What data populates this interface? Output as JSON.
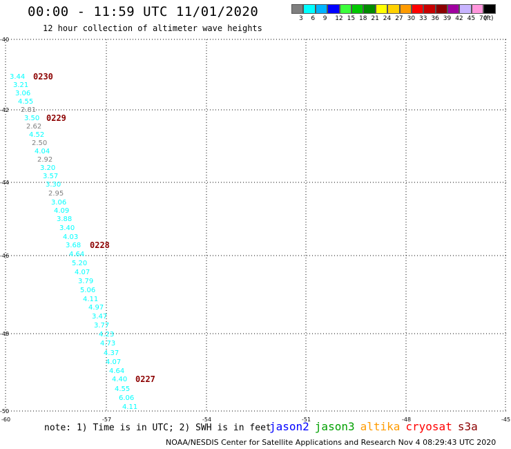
{
  "header": {
    "title": "00:00 - 11:59 UTC 11/01/2020",
    "subtitle": "12 hour collection of altimeter wave heights"
  },
  "colorbar": {
    "colors": [
      "#7f7f7f",
      "#00ffff",
      "#00b4ff",
      "#0000ff",
      "#3cff3c",
      "#00c800",
      "#008c00",
      "#ffff00",
      "#ffd200",
      "#ff9b00",
      "#ff0000",
      "#c80000",
      "#8c0000",
      "#a000a0",
      "#c8b4ff",
      "#ff96dc",
      "#000000"
    ],
    "labels": [
      "3",
      "6",
      "9",
      "12",
      "15",
      "18",
      "21",
      "24",
      "27",
      "30",
      "33",
      "36",
      "39",
      "42",
      "45",
      "70",
      "(ft)"
    ]
  },
  "map": {
    "lon_ticks": [
      "-60",
      "-57",
      "-54",
      "-51",
      "-48",
      "-45"
    ],
    "lat_ticks": [
      "-40",
      "-42",
      "-44",
      "-46",
      "-48",
      "-50"
    ],
    "observations": [
      {
        "value": "3.44",
        "color": "#00ffff"
      },
      {
        "value": "3.21",
        "color": "#00ffff"
      },
      {
        "value": "3.06",
        "color": "#00ffff"
      },
      {
        "value": "4.55",
        "color": "#00ffff"
      },
      {
        "value": "2.81",
        "color": "#7f7f7f"
      },
      {
        "value": "3.50",
        "color": "#00ffff"
      },
      {
        "value": "2.62",
        "color": "#7f7f7f"
      },
      {
        "value": "4.52",
        "color": "#00ffff"
      },
      {
        "value": "2.50",
        "color": "#7f7f7f"
      },
      {
        "value": "4.04",
        "color": "#00ffff"
      },
      {
        "value": "2.92",
        "color": "#7f7f7f"
      },
      {
        "value": "3.20",
        "color": "#00ffff"
      },
      {
        "value": "3.57",
        "color": "#00ffff"
      },
      {
        "value": "3.30",
        "color": "#00ffff"
      },
      {
        "value": "2.95",
        "color": "#7f7f7f"
      },
      {
        "value": "3.06",
        "color": "#00ffff"
      },
      {
        "value": "4.09",
        "color": "#00ffff"
      },
      {
        "value": "3.88",
        "color": "#00ffff"
      },
      {
        "value": "3.40",
        "color": "#00ffff"
      },
      {
        "value": "4.03",
        "color": "#00ffff"
      },
      {
        "value": "3.68",
        "color": "#00ffff"
      },
      {
        "value": "4.64",
        "color": "#00ffff"
      },
      {
        "value": "5.20",
        "color": "#00ffff"
      },
      {
        "value": "4.07",
        "color": "#00ffff"
      },
      {
        "value": "3.79",
        "color": "#00ffff"
      },
      {
        "value": "5.06",
        "color": "#00ffff"
      },
      {
        "value": "4.11",
        "color": "#00ffff"
      },
      {
        "value": "4.97",
        "color": "#00ffff"
      },
      {
        "value": "3.47",
        "color": "#00ffff"
      },
      {
        "value": "3.77",
        "color": "#00ffff"
      },
      {
        "value": "4.23",
        "color": "#00ffff"
      },
      {
        "value": "4.73",
        "color": "#00ffff"
      },
      {
        "value": "4.37",
        "color": "#00ffff"
      },
      {
        "value": "4.07",
        "color": "#00ffff"
      },
      {
        "value": "4.64",
        "color": "#00ffff"
      },
      {
        "value": "4.40",
        "color": "#00ffff"
      },
      {
        "value": "4.55",
        "color": "#00ffff"
      },
      {
        "value": "6.06",
        "color": "#00ffff"
      },
      {
        "value": "4.11",
        "color": "#00ffff"
      }
    ],
    "pass_times": [
      {
        "label": "0230",
        "color": "#8c0000"
      },
      {
        "label": "0229",
        "color": "#8c0000"
      },
      {
        "label": "0228",
        "color": "#8c0000"
      },
      {
        "label": "0227",
        "color": "#8c0000"
      }
    ]
  },
  "note": "note: 1) Time is in UTC; 2) SWH is in feet",
  "legend": [
    {
      "name": "jason2",
      "color": "#0000ff"
    },
    {
      "name": "jason3",
      "color": "#00a000"
    },
    {
      "name": "altika",
      "color": "#ff9b00"
    },
    {
      "name": "cryosat",
      "color": "#ff0000"
    },
    {
      "name": "s3a",
      "color": "#8c0000"
    }
  ],
  "footer": "NOAA/NESDIS Center for Satellite Applications and Research   Nov  4 08:29:43 UTC 2020"
}
